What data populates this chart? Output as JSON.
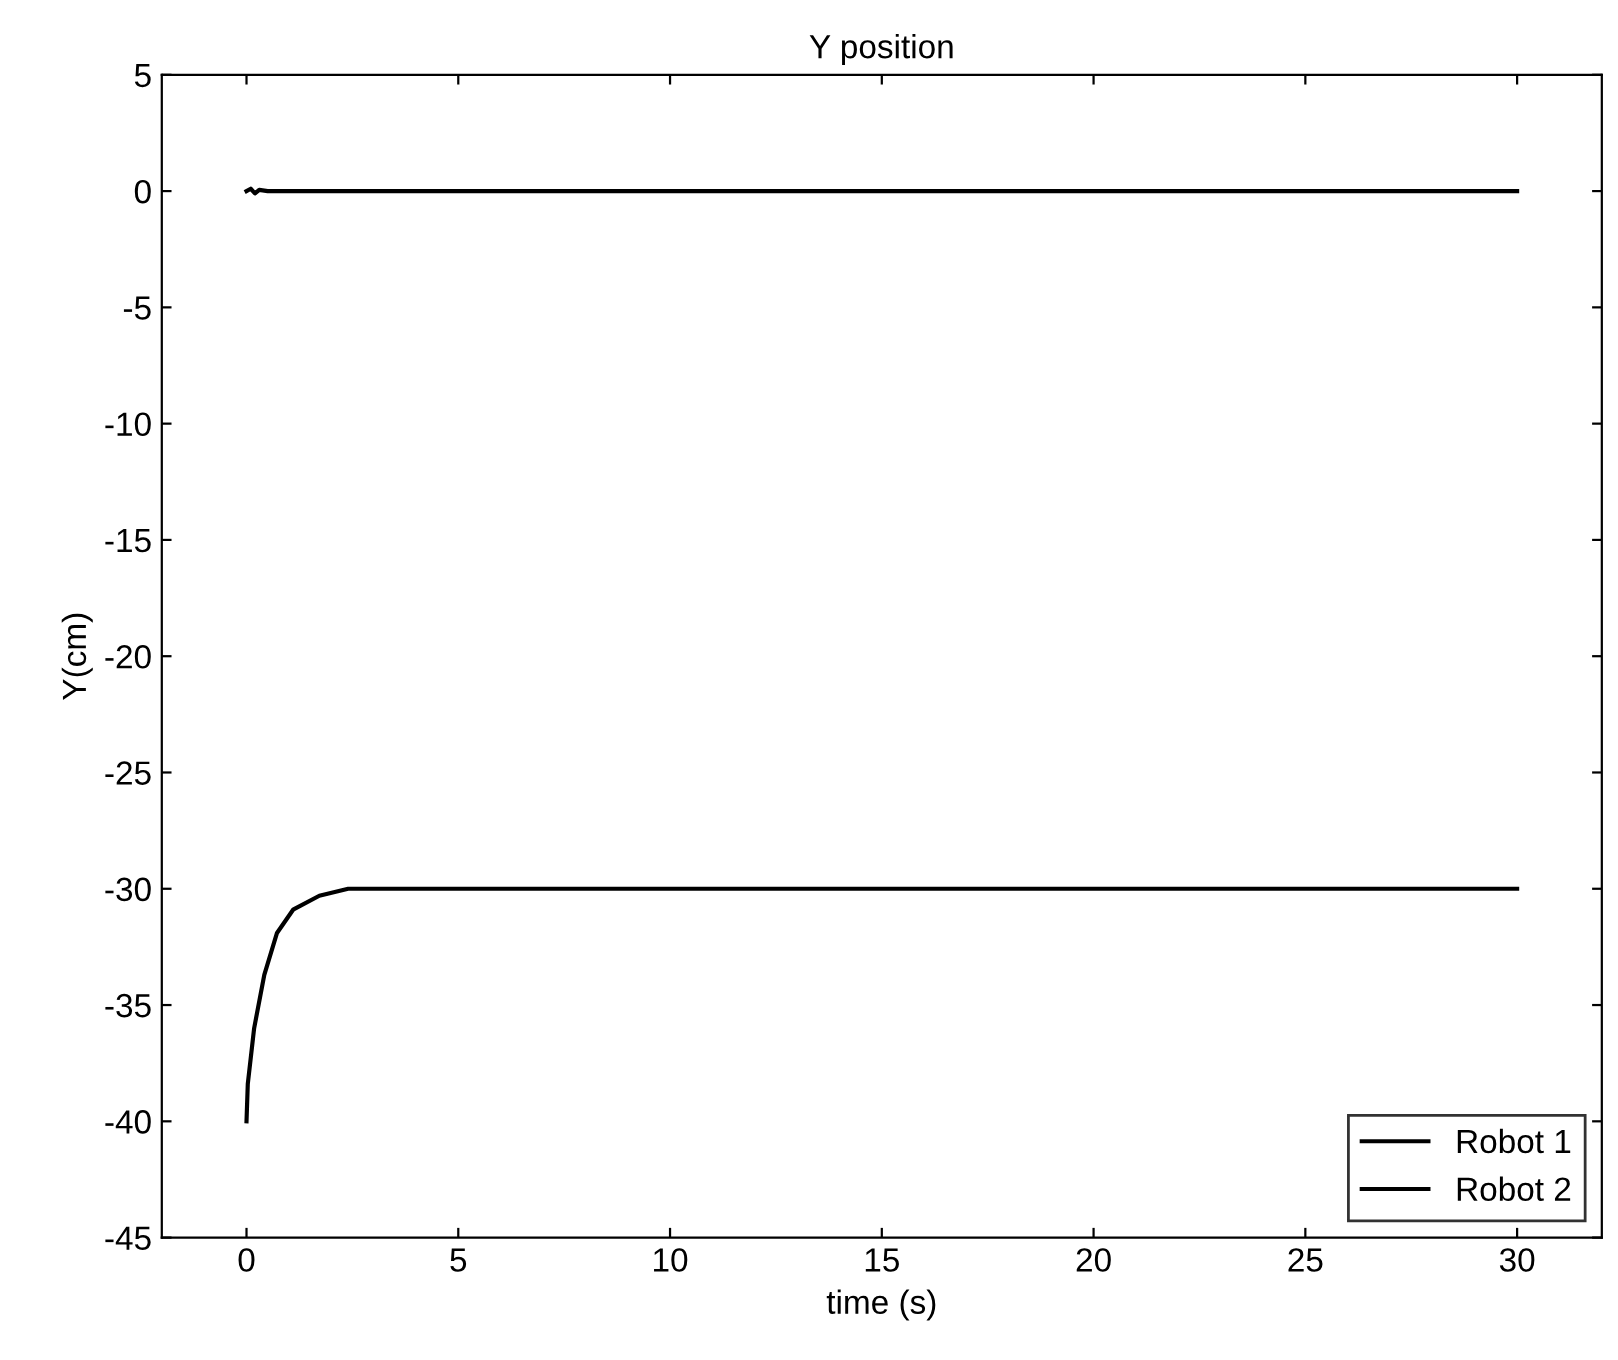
{
  "chart_data": {
    "type": "line",
    "title": "Y position",
    "xlabel": "time (s)",
    "ylabel": "Y(cm)",
    "xlim": [
      -2,
      32
    ],
    "ylim": [
      -45,
      5
    ],
    "xticks": [
      0,
      5,
      10,
      15,
      20,
      25,
      30
    ],
    "yticks": [
      -45,
      -40,
      -35,
      -30,
      -25,
      -20,
      -15,
      -10,
      -5,
      0,
      5
    ],
    "grid": false,
    "legend": "bottom right",
    "line_style": "solid",
    "marker": "none",
    "series": [
      {
        "name": "Robot 1",
        "color": "#000000",
        "x": [
          0,
          0.1,
          0.2,
          0.3,
          0.5,
          1,
          30
        ],
        "values": [
          0,
          0.1,
          -0.1,
          0.05,
          0,
          0,
          0
        ]
      },
      {
        "name": "Robot 2",
        "color": "#000000",
        "x": [
          0,
          0.03,
          0.18,
          0.42,
          0.72,
          1.1,
          1.72,
          2.4,
          30
        ],
        "values": [
          -40,
          -38.4,
          -36.0,
          -33.7,
          -31.9,
          -30.9,
          -30.3,
          -30,
          -30
        ]
      }
    ]
  }
}
